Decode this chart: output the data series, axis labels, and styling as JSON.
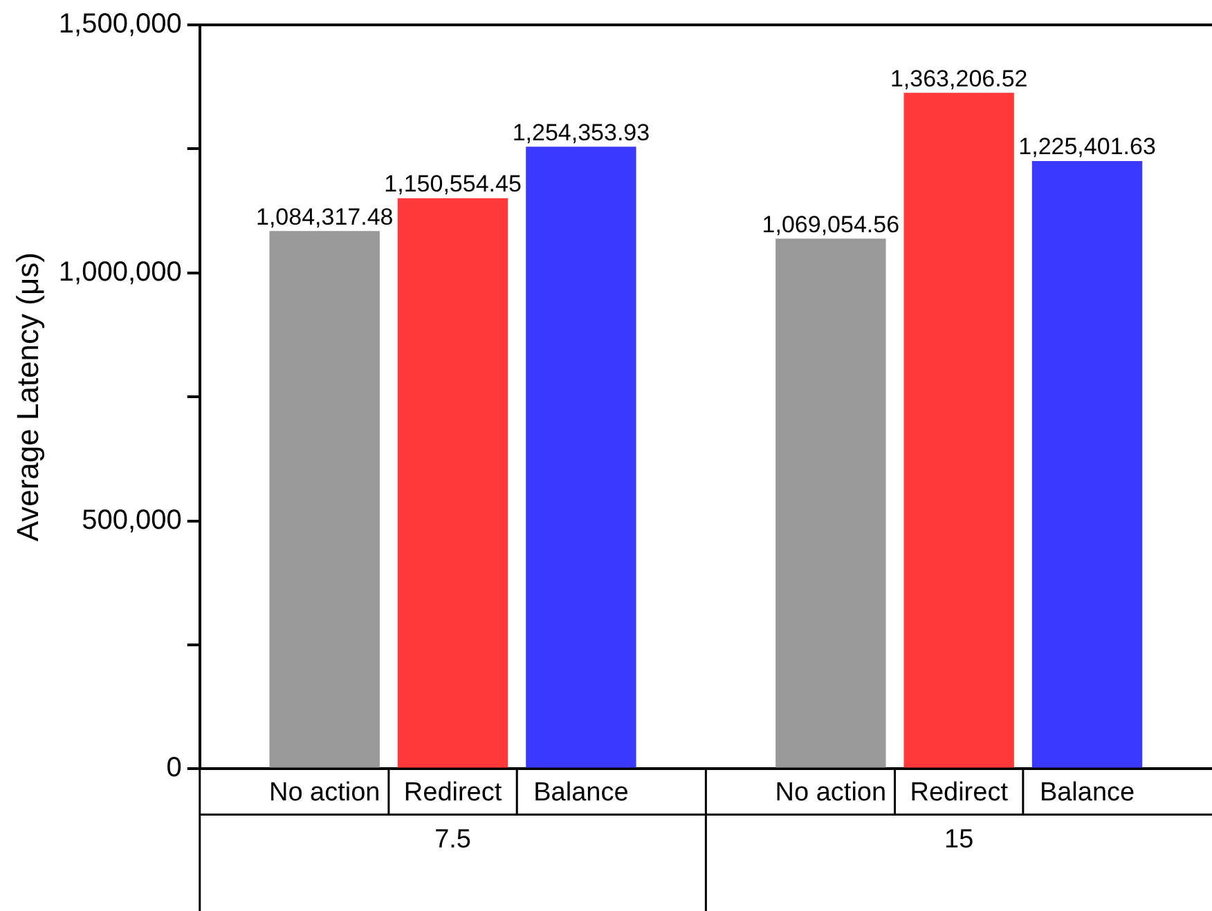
{
  "chart_data": {
    "type": "bar",
    "ylabel": "Average Latency (μs)",
    "categories": [
      "7.5",
      "15"
    ],
    "series": [
      {
        "name": "No action",
        "color": "#999999",
        "values": [
          1084317.48,
          1069054.56
        ],
        "value_labels": [
          "1,084,317.48",
          "1,069,054.56"
        ]
      },
      {
        "name": "Redirect",
        "color": "#ff3939",
        "values": [
          1150554.45,
          1363206.52
        ],
        "value_labels": [
          "1,150,554.45",
          "1,363,206.52"
        ]
      },
      {
        "name": "Balance",
        "color": "#3939ff",
        "values": [
          1254353.93,
          1225401.63
        ],
        "value_labels": [
          "1,254,353.93",
          "1,225,401.63"
        ]
      }
    ],
    "ylim": [
      0,
      1500000
    ],
    "yticks": [
      {
        "value": 0,
        "label": "0"
      },
      {
        "value": 250000,
        "label": null
      },
      {
        "value": 500000,
        "label": "500,000"
      },
      {
        "value": 750000,
        "label": null
      },
      {
        "value": 1000000,
        "label": "1,000,000"
      },
      {
        "value": 1250000,
        "label": null
      },
      {
        "value": 1500000,
        "label": "1,500,000"
      }
    ],
    "grid": false,
    "legend": false
  }
}
